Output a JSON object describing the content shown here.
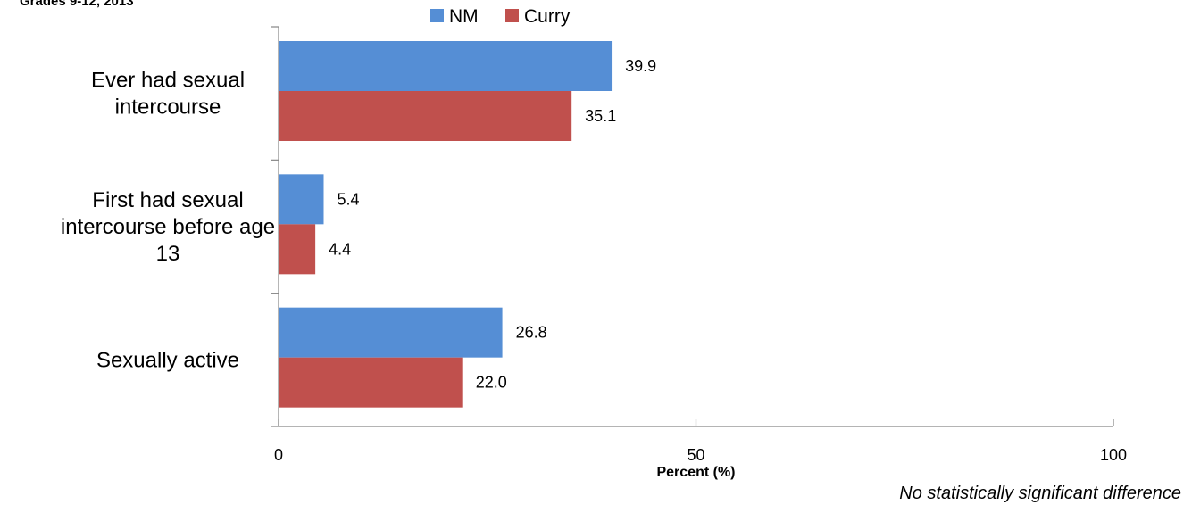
{
  "subtitle": "Grades 9-12, 2013",
  "note": "No statistically significant difference",
  "chart_data": {
    "type": "bar",
    "orientation": "horizontal",
    "categories": [
      "Ever had sexual intercourse",
      "First had sexual intercourse before age 13",
      "Sexually active"
    ],
    "category_label_lines": [
      [
        "Ever had sexual",
        "intercourse"
      ],
      [
        "First had sexual",
        "intercourse before age",
        "13"
      ],
      [
        "Sexually active"
      ]
    ],
    "series": [
      {
        "name": "NM",
        "color": "#558ED5",
        "values": [
          39.9,
          5.4,
          26.8
        ],
        "labels": [
          "39.9",
          "5.4",
          "26.8"
        ]
      },
      {
        "name": "Curry",
        "color": "#C0504D",
        "values": [
          35.1,
          4.4,
          22.0
        ],
        "labels": [
          "35.1",
          "4.4",
          "22.0"
        ]
      }
    ],
    "xlabel": "Percent (%)",
    "xlim": [
      0,
      100
    ],
    "xticks": [
      0,
      50,
      100
    ],
    "legend_position": "top",
    "grid": false,
    "axis_color": "#868686"
  }
}
